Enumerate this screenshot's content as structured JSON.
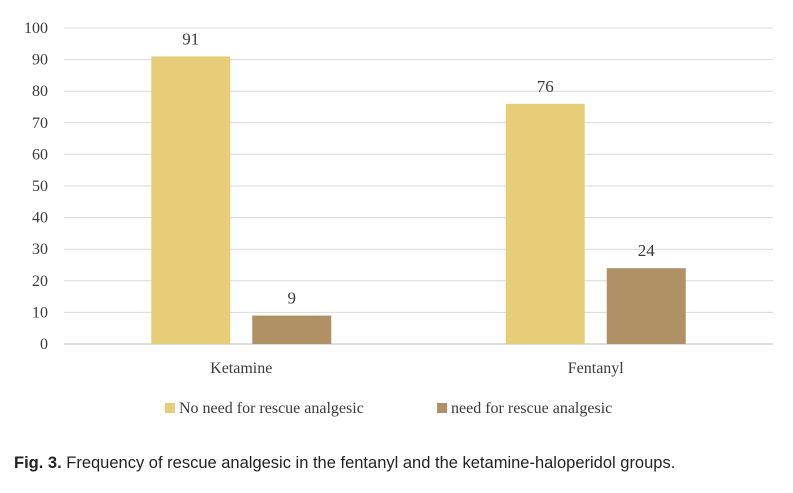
{
  "chart_data": {
    "type": "bar",
    "categories": [
      "Ketamine",
      "Fentanyl"
    ],
    "series": [
      {
        "name": "No need for rescue analgesic",
        "values": [
          91,
          76
        ],
        "color": "#e8cd78"
      },
      {
        "name": "need for rescue analgesic",
        "values": [
          9,
          24
        ],
        "color": "#b09166"
      }
    ],
    "ylim": [
      0,
      100
    ],
    "yticks": [
      0,
      10,
      20,
      30,
      40,
      50,
      60,
      70,
      80,
      90,
      100
    ],
    "grid": true,
    "legend": "bottom",
    "data_labels": true,
    "gridline_color": "#d9d9d9",
    "axis_color": "#bfbfbf"
  },
  "caption": {
    "label": "Fig. 3.",
    "text": " Frequency of rescue analgesic in the fentanyl and the ketamine-haloperidol groups."
  }
}
